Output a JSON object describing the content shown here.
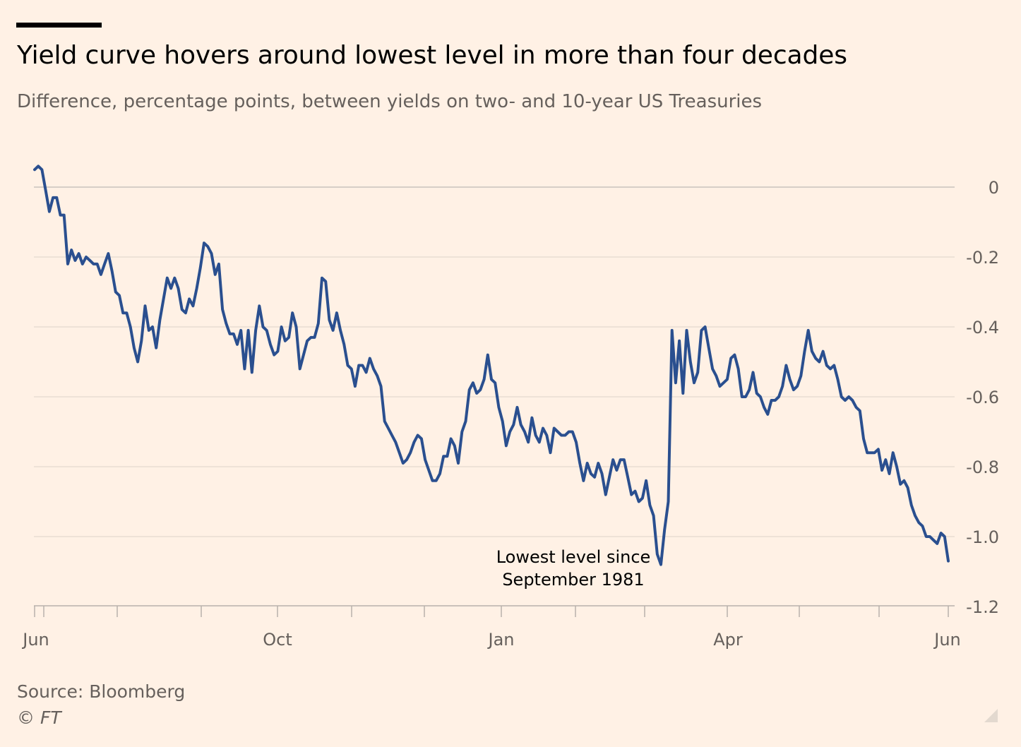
{
  "header": {
    "title": "Yield curve hovers around lowest level in more than four decades",
    "subtitle": "Difference, percentage points, between yields on two- and 10-year US Treasuries"
  },
  "footer": {
    "source": "Source: Bloomberg",
    "copyright": "© FT"
  },
  "colors": {
    "background": "#FFF1E5",
    "line": "#2A4F8F",
    "grid": "#E3D9CF",
    "zero_line": "#C9C3BD",
    "axis": "#B8B1AB",
    "tick_text": "#66605C"
  },
  "icons": {
    "corner": "resize-handle-icon"
  },
  "chart_data": {
    "type": "line",
    "title": "Yield curve hovers around lowest level in more than four decades",
    "subtitle": "Difference, percentage points, between yields on two- and 10-year US Treasuries",
    "xlabel": "",
    "ylabel": "",
    "x_axis_labels": [
      "Jun",
      "Oct",
      "Jan",
      "Apr",
      "Jun"
    ],
    "y_ticks": [
      0,
      -0.2,
      -0.4,
      -0.6,
      -0.8,
      -1.0,
      -1.2
    ],
    "y_tick_labels": [
      "0",
      "-0.2",
      "-0.4",
      "-0.6",
      "-0.8",
      "-1.0",
      "-1.2"
    ],
    "ylim": [
      -1.2,
      0.06
    ],
    "grid": true,
    "y_axis_position": "right",
    "annotation": {
      "lines": [
        "Lowest level since",
        "September 1981"
      ]
    },
    "series": [
      {
        "values": [
          0.05,
          0.06,
          0.05,
          -0.01,
          -0.07,
          -0.03,
          -0.03,
          -0.08,
          -0.08,
          -0.22,
          -0.18,
          -0.21,
          -0.19,
          -0.22,
          -0.2,
          -0.21,
          -0.22,
          -0.22,
          -0.25,
          -0.22,
          -0.19,
          -0.24,
          -0.3,
          -0.31,
          -0.36,
          -0.36,
          -0.4,
          -0.46,
          -0.5,
          -0.44,
          -0.34,
          -0.41,
          -0.4,
          -0.46,
          -0.38,
          -0.32,
          -0.26,
          -0.29,
          -0.26,
          -0.29,
          -0.35,
          -0.36,
          -0.32,
          -0.34,
          -0.29,
          -0.23,
          -0.16,
          -0.17,
          -0.19,
          -0.25,
          -0.22,
          -0.35,
          -0.39,
          -0.42,
          -0.42,
          -0.45,
          -0.41,
          -0.52,
          -0.41,
          -0.53,
          -0.41,
          -0.34,
          -0.4,
          -0.41,
          -0.45,
          -0.48,
          -0.47,
          -0.4,
          -0.44,
          -0.43,
          -0.36,
          -0.4,
          -0.52,
          -0.48,
          -0.44,
          -0.43,
          -0.43,
          -0.39,
          -0.26,
          -0.27,
          -0.38,
          -0.41,
          -0.36,
          -0.41,
          -0.45,
          -0.51,
          -0.52,
          -0.57,
          -0.51,
          -0.51,
          -0.53,
          -0.49,
          -0.52,
          -0.54,
          -0.57,
          -0.67,
          -0.69,
          -0.71,
          -0.73,
          -0.76,
          -0.79,
          -0.78,
          -0.76,
          -0.73,
          -0.71,
          -0.72,
          -0.78,
          -0.81,
          -0.84,
          -0.84,
          -0.82,
          -0.77,
          -0.77,
          -0.72,
          -0.74,
          -0.79,
          -0.7,
          -0.67,
          -0.58,
          -0.56,
          -0.59,
          -0.58,
          -0.55,
          -0.48,
          -0.55,
          -0.56,
          -0.63,
          -0.67,
          -0.74,
          -0.7,
          -0.68,
          -0.63,
          -0.68,
          -0.7,
          -0.73,
          -0.66,
          -0.71,
          -0.73,
          -0.69,
          -0.71,
          -0.76,
          -0.69,
          -0.7,
          -0.71,
          -0.71,
          -0.7,
          -0.7,
          -0.73,
          -0.79,
          -0.84,
          -0.79,
          -0.82,
          -0.83,
          -0.79,
          -0.82,
          -0.88,
          -0.83,
          -0.78,
          -0.81,
          -0.78,
          -0.78,
          -0.83,
          -0.88,
          -0.87,
          -0.9,
          -0.89,
          -0.84,
          -0.91,
          -0.94,
          -1.05,
          -1.08,
          -0.98,
          -0.9,
          -0.41,
          -0.56,
          -0.44,
          -0.59,
          -0.41,
          -0.5,
          -0.56,
          -0.53,
          -0.41,
          -0.4,
          -0.46,
          -0.52,
          -0.54,
          -0.57,
          -0.56,
          -0.55,
          -0.49,
          -0.48,
          -0.52,
          -0.6,
          -0.6,
          -0.58,
          -0.53,
          -0.59,
          -0.6,
          -0.63,
          -0.65,
          -0.61,
          -0.61,
          -0.6,
          -0.57,
          -0.51,
          -0.55,
          -0.58,
          -0.57,
          -0.54,
          -0.47,
          -0.41,
          -0.47,
          -0.49,
          -0.5,
          -0.47,
          -0.51,
          -0.52,
          -0.51,
          -0.55,
          -0.6,
          -0.61,
          -0.6,
          -0.61,
          -0.63,
          -0.64,
          -0.72,
          -0.76,
          -0.76,
          -0.76,
          -0.75,
          -0.81,
          -0.78,
          -0.82,
          -0.76,
          -0.8,
          -0.85,
          -0.84,
          -0.86,
          -0.91,
          -0.94,
          -0.96,
          -0.97,
          -1.0,
          -1.0,
          -1.01,
          -1.02,
          -0.99,
          -1.0,
          -1.07
        ]
      }
    ]
  }
}
